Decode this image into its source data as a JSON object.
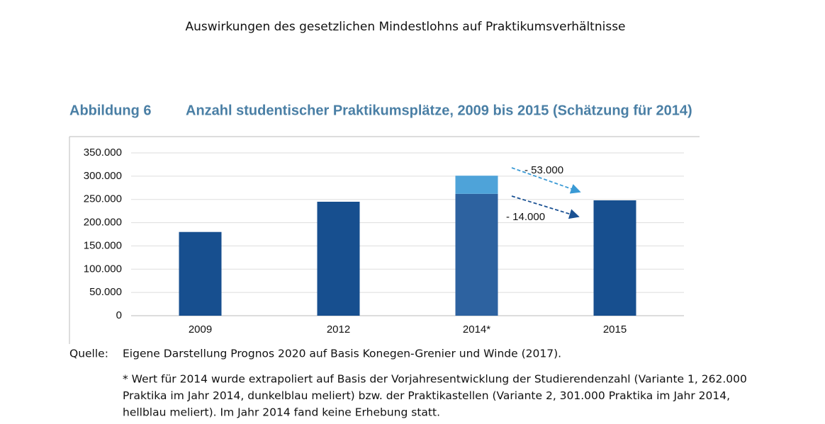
{
  "header": {
    "title": "Auswirkungen des gesetzlichen Mindestlohns auf Praktikumsverhältnisse"
  },
  "figure": {
    "label": "Abbildung 6",
    "title": "Anzahl studentischer Praktikumsplätze, 2009 bis 2015 (Schätzung für 2014)"
  },
  "chart_data": {
    "type": "bar",
    "stacked": true,
    "categories": [
      "2009",
      "2012",
      "2014*",
      "2015"
    ],
    "series": [
      {
        "colors": [
          "#174f8f",
          "#174f8f",
          "#2d62a0",
          "#174f8f"
        ],
        "values": [
          180000,
          245000,
          262000,
          248000
        ]
      },
      {
        "color": "#4ea3d9",
        "values": [
          null,
          null,
          39000,
          null
        ]
      }
    ],
    "ylim": [
      0,
      350000
    ],
    "yticks": [
      0,
      {
        "value": 50000,
        "label": "50.000"
      },
      {
        "value": 100000,
        "label": "100.000"
      },
      {
        "value": 150000,
        "label": "150.000"
      },
      {
        "value": 200000,
        "label": "200.000"
      },
      {
        "value": 250000,
        "label": "250.000"
      },
      {
        "value": 300000,
        "label": "300.000"
      },
      {
        "value": 350000,
        "label": "350.000"
      }
    ],
    "grid": true,
    "annotations": [
      {
        "text": "- 53.000",
        "color": "#3a9ad5"
      },
      {
        "text": "- 14.000",
        "color": "#1a5193"
      }
    ]
  },
  "source": {
    "label": "Quelle:",
    "text": "Eigene Darstellung Prognos 2020 auf Basis Konegen-Grenier und Winde (2017).",
    "note": [
      "* Wert für 2014 wurde extrapoliert auf Basis der Vorjahresentwicklung der Studierendenzahl (Variante 1, 262.000",
      "Praktika im Jahr 2014, dunkelblau meliert) bzw. der Praktikastellen (Variante 2, 301.000 Praktika im Jahr 2014,",
      "hellblau meliert). Im Jahr 2014 fand keine Erhebung statt."
    ]
  }
}
